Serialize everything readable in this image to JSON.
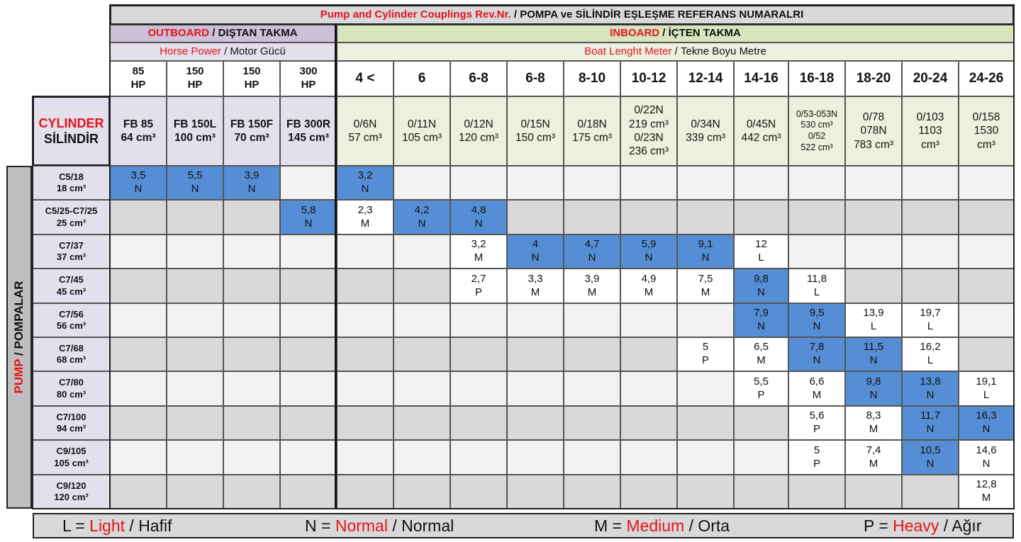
{
  "title": {
    "en": "Pump and Cylinder Couplings Rev.Nr.",
    "sep": " / ",
    "tr": "POMPA ve SİLİNDİR EŞLEŞME REFERANS NUMARALRI"
  },
  "outboard": {
    "title_en": "OUTBOARD",
    "title_tr": "DIŞTAN TAKMA",
    "sub_en": "Horse Power",
    "sub_tr": "Motor Gücü"
  },
  "inboard": {
    "title_en": "INBOARD",
    "title_tr": "İÇTEN TAKMA",
    "sub_en": "Boat Lenght Meter",
    "sub_tr": "Tekne Boyu Metre"
  },
  "outboard_sizes": [
    "85\nHP",
    "150\nHP",
    "150\nHP",
    "300\nHP"
  ],
  "inboard_sizes": [
    "4 <",
    "6",
    "6-8",
    "6-8",
    "8-10",
    "10-12",
    "12-14",
    "14-16",
    "16-18",
    "18-20",
    "20-24",
    "24-26"
  ],
  "cylinder_label": {
    "en": "CYLINDER",
    "tr": "SİLİNDİR"
  },
  "outboard_cylinders": [
    "FB 85\n64 cm³",
    "FB 150L\n100 cm³",
    "FB 150F\n70 cm³",
    "FB 300R\n145 cm³"
  ],
  "inboard_cylinders": [
    "0/6N\n57 cm³",
    "0/11N\n105 cm³",
    "0/12N\n120 cm³",
    "0/15N\n150 cm³",
    "0/18N\n175 cm³",
    "0/22N\n219 cm³\n0/23N\n236 cm³",
    "0/34N\n339 cm³",
    "0/45N\n442 cm³",
    "0/53-053N\n530 cm³\n0/52\n522 cm³",
    "0/78\n078N\n783 cm³",
    "0/103\n1103\ncm³",
    "0/158\n1530\ncm³"
  ],
  "pump_label": {
    "en": "PUMP",
    "tr": "POMPALAR"
  },
  "pumps": [
    {
      "name": "C5/18",
      "cc": "18 cm³"
    },
    {
      "name": "C5/25-C7/25",
      "cc": "25 cm³"
    },
    {
      "name": "C7/37",
      "cc": "37 cm³"
    },
    {
      "name": "C7/45",
      "cc": "45 cm³"
    },
    {
      "name": "C7/56",
      "cc": "56 cm³"
    },
    {
      "name": "C7/68",
      "cc": "68 cm³"
    },
    {
      "name": "C7/80",
      "cc": "80 cm³"
    },
    {
      "name": "C7/100",
      "cc": "94 cm³"
    },
    {
      "name": "C9/105",
      "cc": "105 cm³"
    },
    {
      "name": "C9/120",
      "cc": "120 cm³"
    }
  ],
  "matrix": [
    [
      "3,5\nN",
      "5,5\nN",
      "3,9\nN",
      "",
      "3,2\nN",
      "",
      "",
      "",
      "",
      "",
      "",
      "",
      "",
      "",
      "",
      ""
    ],
    [
      "",
      "",
      "",
      "5,8\nN",
      "2,3\nM",
      "4,2\nN",
      "4,8\nN",
      "",
      "",
      "",
      "",
      "",
      "",
      "",
      "",
      ""
    ],
    [
      "",
      "",
      "",
      "",
      "",
      "",
      "3,2\nM",
      "4\nN",
      "4,7\nN",
      "5,9\nN",
      "9,1\nN",
      "12\nL",
      "",
      "",
      "",
      ""
    ],
    [
      "",
      "",
      "",
      "",
      "",
      "",
      "2,7\nP",
      "3,3\nM",
      "3,9\nM",
      "4,9\nM",
      "7,5\nM",
      "9,8\nN",
      "11,8\nL",
      "",
      "",
      ""
    ],
    [
      "",
      "",
      "",
      "",
      "",
      "",
      "",
      "",
      "",
      "",
      "",
      "7,9\nN",
      "9,5\nN",
      "13,9\nL",
      "19,7\nL",
      ""
    ],
    [
      "",
      "",
      "",
      "",
      "",
      "",
      "",
      "",
      "",
      "",
      "5\nP",
      "6,5\nM",
      "7,8\nN",
      "11,5\nN",
      "16,2\nL",
      ""
    ],
    [
      "",
      "",
      "",
      "",
      "",
      "",
      "",
      "",
      "",
      "",
      "",
      "5,5\nP",
      "6,6\nM",
      "9,8\nN",
      "13,8\nN",
      "19,1\nL"
    ],
    [
      "",
      "",
      "",
      "",
      "",
      "",
      "",
      "",
      "",
      "",
      "",
      "",
      "5,6\nP",
      "8,3\nM",
      "11,7\nN",
      "16,3\nN"
    ],
    [
      "",
      "",
      "",
      "",
      "",
      "",
      "",
      "",
      "",
      "",
      "",
      "",
      "5\nP",
      "7,4\nM",
      "10,5\nN",
      "14,6\nN"
    ],
    [
      "",
      "",
      "",
      "",
      "",
      "",
      "",
      "",
      "",
      "",
      "",
      "",
      "",
      "",
      "",
      "12,8\nM"
    ]
  ],
  "highlight_color": "#558ed5",
  "legend": [
    {
      "key": "L = ",
      "en": "Light",
      "tr": " / Hafif"
    },
    {
      "key": "N = ",
      "en": "Normal",
      "tr": " / Normal"
    },
    {
      "key": "M = ",
      "en": "Medium",
      "tr": " / Orta"
    },
    {
      "key": "P = ",
      "en": "Heavy",
      "tr": " / Ağır"
    }
  ]
}
